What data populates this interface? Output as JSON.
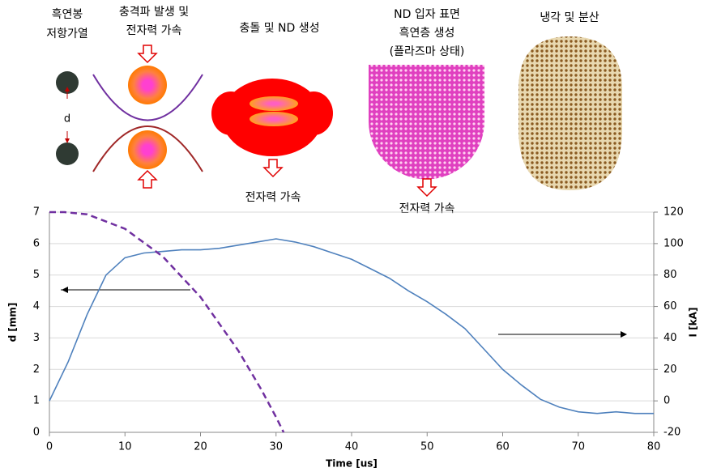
{
  "diagram": {
    "labels": [
      [
        "흑연봉",
        "저항가열"
      ],
      [
        "충격파 발생 및",
        "전자력 가속"
      ],
      [
        "충돌 및 ND 생성"
      ],
      [
        "ND 입자 표면",
        "흑연층 생성",
        "(플라즈마 상태)"
      ],
      [
        "냉각 및 분산"
      ]
    ],
    "gap_label": "d",
    "force_labels": [
      "전자력 가속",
      "전자력 가속"
    ]
  },
  "chart_data": {
    "type": "line",
    "xlabel": "Time [us]",
    "ylabel": "d [mm]",
    "y2label": "I [kA]",
    "xlim": [
      0,
      80
    ],
    "xticks": [
      0,
      10,
      20,
      30,
      40,
      50,
      60,
      70,
      80
    ],
    "ylim": [
      0,
      7
    ],
    "yticks": [
      0,
      1,
      2,
      3,
      4,
      5,
      6,
      7
    ],
    "y2lim": [
      -20,
      120
    ],
    "y2ticks": [
      -20,
      0,
      20,
      40,
      60,
      80,
      100,
      120
    ],
    "grid": true,
    "series": [
      {
        "axis": "y2",
        "color": "#4f81bd",
        "dashed": false,
        "x": [
          0,
          2.5,
          5,
          7.5,
          10,
          12.5,
          15,
          17.5,
          20,
          22.5,
          25,
          27.5,
          30,
          32.5,
          35,
          37.5,
          40,
          42.5,
          45,
          47.5,
          50,
          52.5,
          55,
          57.5,
          60,
          62.5,
          65,
          67.5,
          70,
          72.5,
          75,
          77.5,
          80
        ],
        "values": [
          0,
          25,
          55,
          80,
          91,
          94,
          95,
          96,
          96,
          97,
          99,
          101,
          103,
          101,
          98,
          94,
          90,
          84,
          78,
          70,
          63,
          55,
          46,
          33,
          20,
          10,
          1,
          -4,
          -7,
          -8,
          -7,
          -8,
          -8
        ]
      },
      {
        "axis": "y",
        "color": "#7030a0",
        "dashed": true,
        "x": [
          0,
          2,
          5,
          10,
          15,
          20,
          25,
          28,
          30,
          31
        ],
        "values": [
          7,
          7,
          6.93,
          6.47,
          5.59,
          4.3,
          2.6,
          1.38,
          0.48,
          0
        ]
      }
    ]
  }
}
